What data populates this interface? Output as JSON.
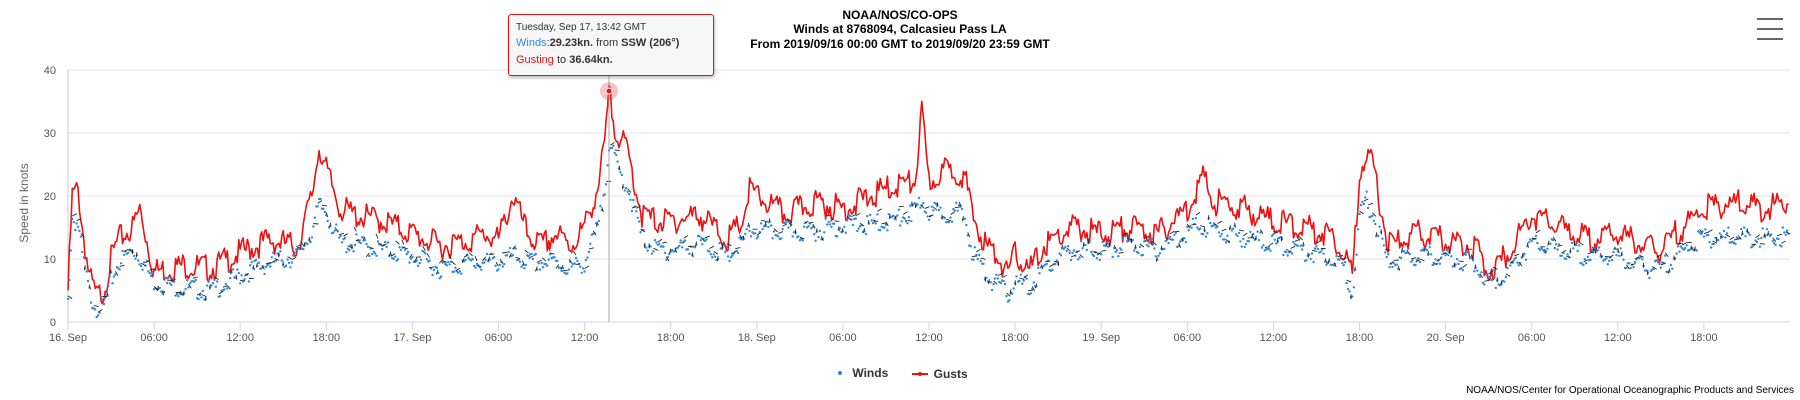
{
  "header": {
    "line1": "NOAA/NOS/CO-OPS",
    "line2": "Winds at 8768094, Calcasieu Pass LA",
    "line3": "From 2019/09/16 00:00 GMT to 2019/09/20 23:59 GMT"
  },
  "tooltip": {
    "date": "Tuesday, Sep 17, 13:42 GMT",
    "winds_label": "Winds",
    "winds_value": "29.23kn.",
    "from_text": "from",
    "direction": "SSW (206°)",
    "gust_label": "Gusting",
    "to_text": "to",
    "gust_value": "36.64kn."
  },
  "legend": {
    "winds": "Winds",
    "gusts": "Gusts"
  },
  "credits": "NOAA/NOS/Center for Operational Oceanographic Products and Services",
  "menu": {
    "icon": "hamburger-menu-icon"
  },
  "colors": {
    "winds": "#2b8ae0",
    "gusts": "#ee1111",
    "arrow": "#222222",
    "grid": "#e6e6e6"
  },
  "chart_data": {
    "type": "line",
    "title": "Winds at 8768094, Calcasieu Pass LA",
    "subtitle": "From 2019/09/16 00:00 GMT to 2019/09/20 23:59 GMT",
    "xlabel": "",
    "ylabel": "Speed in knots",
    "x_unit": "hours since 2019/09/16 00:00 GMT",
    "xlim": [
      0,
      120
    ],
    "ylim": [
      0,
      40
    ],
    "yticks": [
      0,
      10,
      20,
      30,
      40
    ],
    "xticks": [
      {
        "x": 0,
        "label": "16. Sep"
      },
      {
        "x": 6,
        "label": "06:00"
      },
      {
        "x": 12,
        "label": "12:00"
      },
      {
        "x": 18,
        "label": "18:00"
      },
      {
        "x": 24,
        "label": "17. Sep"
      },
      {
        "x": 30,
        "label": "06:00"
      },
      {
        "x": 36,
        "label": "12:00"
      },
      {
        "x": 42,
        "label": "18:00"
      },
      {
        "x": 48,
        "label": "18. Sep"
      },
      {
        "x": 54,
        "label": "06:00"
      },
      {
        "x": 60,
        "label": "12:00"
      },
      {
        "x": 66,
        "label": "18:00"
      },
      {
        "x": 72,
        "label": "19. Sep"
      },
      {
        "x": 78,
        "label": "06:00"
      },
      {
        "x": 84,
        "label": "12:00"
      },
      {
        "x": 90,
        "label": "18:00"
      },
      {
        "x": 96,
        "label": "20. Sep"
      },
      {
        "x": 102,
        "label": "06:00"
      },
      {
        "x": 108,
        "label": "12:00"
      },
      {
        "x": 114,
        "label": "18:00"
      }
    ],
    "grid": true,
    "legend": "bottom-center",
    "highlight": {
      "x": 37.7,
      "y": 36.64
    },
    "series": [
      {
        "name": "Gusts",
        "x": [
          0,
          0.3,
          0.7,
          1,
          1.5,
          2,
          2.5,
          3,
          3.5,
          4,
          4.5,
          5,
          6,
          8,
          10,
          12,
          14,
          16,
          17,
          17.5,
          18,
          19,
          20,
          22,
          24,
          26,
          28,
          29,
          30,
          31,
          32,
          33,
          34,
          35,
          36,
          37,
          37.5,
          37.7,
          38,
          38.5,
          39,
          40,
          41,
          42,
          44,
          46,
          47,
          47.5,
          48,
          50,
          52,
          54,
          56,
          58,
          59,
          59.5,
          60,
          61,
          62,
          62.5,
          63,
          64,
          65,
          65.5,
          66,
          67,
          68,
          70,
          72,
          74,
          76,
          78,
          79,
          80,
          82,
          84,
          86,
          88,
          89,
          89.5,
          90,
          90.5,
          91,
          92,
          94,
          96,
          98,
          99,
          100,
          102,
          104,
          106,
          108,
          109,
          110,
          111,
          112,
          114,
          116,
          118,
          119.9
        ],
        "y": [
          5,
          20,
          21,
          15,
          7,
          4,
          5,
          10,
          13,
          14,
          15,
          18,
          8,
          9,
          8.5,
          11,
          13,
          12,
          20,
          28,
          24,
          18,
          17,
          16,
          14,
          12,
          13,
          14,
          13,
          20,
          14,
          12,
          14,
          12,
          15,
          22,
          30,
          36.64,
          32,
          29,
          27,
          17,
          16,
          16,
          17,
          13,
          16,
          21,
          20,
          17,
          19,
          18,
          20,
          22,
          22,
          33,
          22,
          24,
          24,
          23,
          17,
          12,
          10,
          7,
          11,
          8,
          12,
          15,
          14,
          15,
          14,
          18,
          23,
          19,
          18,
          16,
          15,
          14,
          11,
          7,
          24,
          27,
          24,
          12,
          14,
          13,
          12,
          8,
          10,
          17,
          15,
          13,
          14,
          13,
          12,
          11,
          14,
          18,
          19,
          18,
          19
        ]
      },
      {
        "name": "Winds",
        "x": [
          0,
          0.3,
          0.7,
          1,
          1.5,
          2,
          2.5,
          3,
          3.5,
          4,
          4.5,
          5,
          6,
          8,
          10,
          12,
          14,
          16,
          17,
          17.5,
          18,
          19,
          20,
          22,
          24,
          26,
          28,
          29,
          30,
          31,
          32,
          33,
          34,
          35,
          36,
          37,
          37.5,
          37.7,
          38,
          38.5,
          39,
          40,
          41,
          42,
          44,
          46,
          47,
          47.5,
          48,
          50,
          52,
          54,
          56,
          58,
          59,
          59.5,
          60,
          61,
          62,
          62.5,
          63,
          64,
          65,
          65.5,
          66,
          67,
          68,
          70,
          72,
          74,
          76,
          78,
          79,
          80,
          82,
          84,
          86,
          88,
          89,
          89.5,
          90,
          90.5,
          91,
          92,
          94,
          96,
          98,
          99,
          100,
          102,
          104,
          106,
          108,
          109,
          110,
          111,
          112,
          114,
          116,
          118,
          119.9
        ],
        "y": [
          4,
          17,
          16,
          11,
          5,
          3,
          3,
          7,
          10,
          11,
          12,
          11,
          7,
          6,
          5.5,
          8,
          10,
          11,
          15,
          19,
          18,
          13,
          13,
          12,
          11,
          9,
          10,
          10,
          10,
          11,
          10,
          10,
          10,
          9,
          10,
          16,
          24,
          29.23,
          27,
          24,
          22,
          14,
          12,
          12,
          13,
          11,
          13,
          15,
          15,
          15,
          15,
          16,
          16,
          17,
          18,
          20,
          18,
          18,
          18,
          17,
          12,
          8,
          6,
          5,
          7,
          6,
          9,
          12,
          12,
          13,
          12,
          15,
          16,
          15,
          14,
          13,
          12,
          11,
          9,
          5,
          17,
          20,
          17,
          10,
          11,
          11,
          10,
          7,
          8,
          13,
          12,
          11,
          11,
          10,
          9,
          9,
          11,
          14,
          14,
          14,
          14
        ]
      }
    ]
  }
}
